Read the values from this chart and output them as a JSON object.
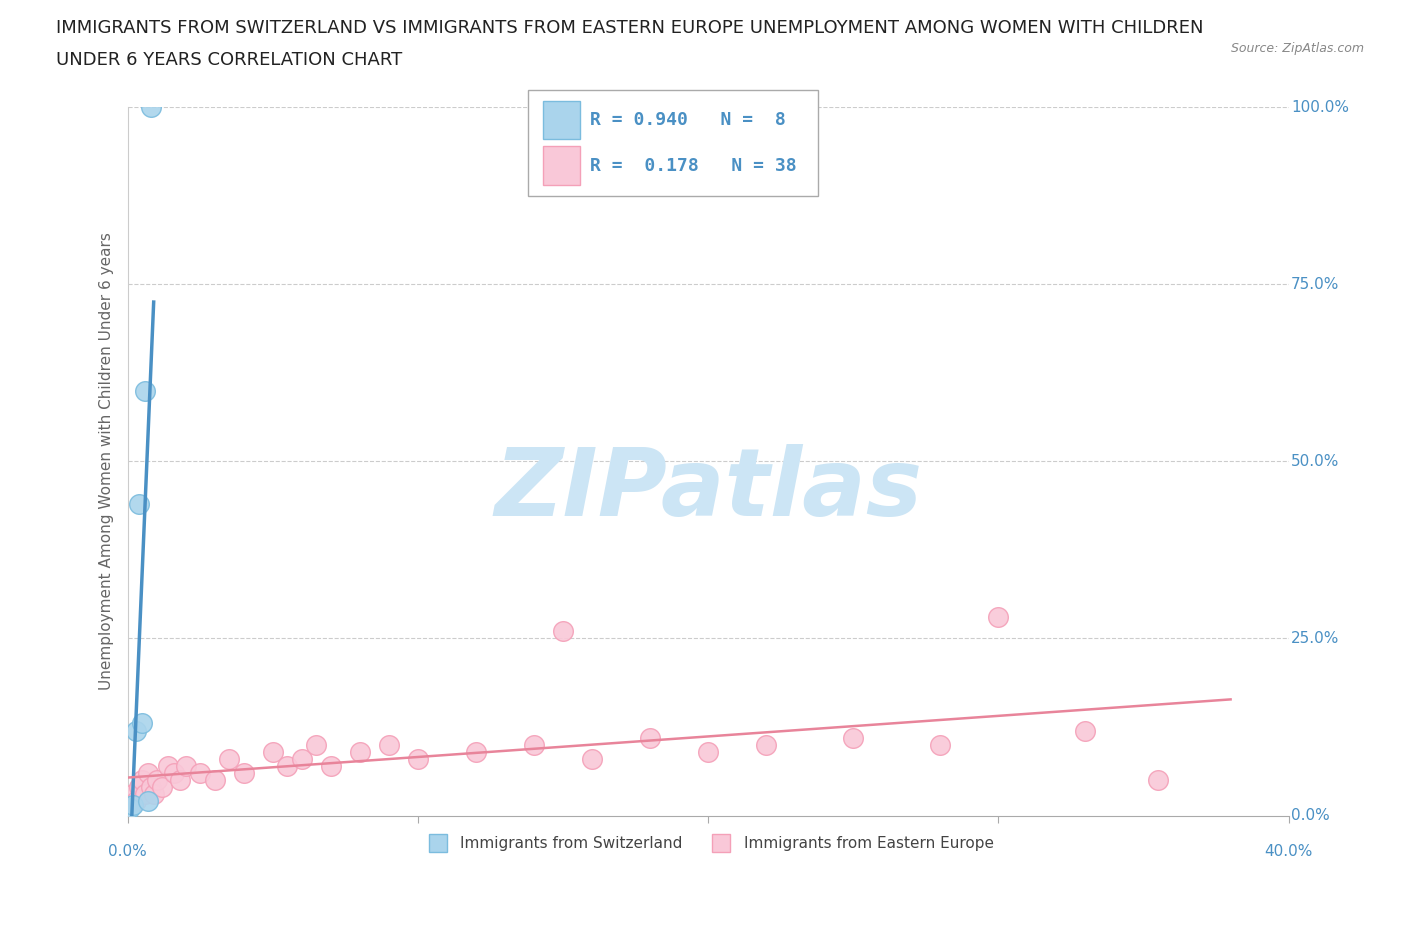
{
  "title_line1": "IMMIGRANTS FROM SWITZERLAND VS IMMIGRANTS FROM EASTERN EUROPE UNEMPLOYMENT AMONG WOMEN WITH CHILDREN",
  "title_line2": "UNDER 6 YEARS CORRELATION CHART",
  "source_text": "Source: ZipAtlas.com",
  "ylabel": "Unemployment Among Women with Children Under 6 years",
  "xlabel_swiss": "Immigrants from Switzerland",
  "xlabel_ee": "Immigrants from Eastern Europe",
  "xlim": [
    0,
    0.4
  ],
  "ylim": [
    0,
    1.0
  ],
  "yticks": [
    0.0,
    0.25,
    0.5,
    0.75,
    1.0
  ],
  "right_ytick_labels": [
    "0.0%",
    "25.0%",
    "50.0%",
    "75.0%",
    "100.0%"
  ],
  "xtick_left_label": "0.0%",
  "xtick_right_label": "40.0%",
  "xticks_minor": [
    0.0,
    0.1,
    0.2,
    0.3,
    0.4
  ],
  "swiss_color": "#7bbcde",
  "swiss_scatter_color": "#aad4ec",
  "ee_color": "#f4a0b8",
  "ee_scatter_color": "#f9c8d8",
  "trendline_swiss_color": "#4a90c4",
  "trendline_ee_color": "#e8849a",
  "swiss_R": 0.94,
  "swiss_N": 8,
  "ee_R": 0.178,
  "ee_N": 38,
  "swiss_x": [
    0.001,
    0.002,
    0.003,
    0.004,
    0.005,
    0.006,
    0.007,
    0.008
  ],
  "swiss_y": [
    0.01,
    0.015,
    0.12,
    0.44,
    0.13,
    0.6,
    0.02,
    1.0
  ],
  "ee_x": [
    0.002,
    0.003,
    0.004,
    0.005,
    0.006,
    0.007,
    0.008,
    0.009,
    0.01,
    0.012,
    0.014,
    0.016,
    0.018,
    0.02,
    0.025,
    0.03,
    0.035,
    0.04,
    0.05,
    0.055,
    0.06,
    0.065,
    0.07,
    0.08,
    0.09,
    0.1,
    0.12,
    0.14,
    0.15,
    0.16,
    0.18,
    0.2,
    0.22,
    0.25,
    0.28,
    0.3,
    0.33,
    0.355
  ],
  "ee_y": [
    0.03,
    0.02,
    0.04,
    0.05,
    0.03,
    0.06,
    0.04,
    0.03,
    0.05,
    0.04,
    0.07,
    0.06,
    0.05,
    0.07,
    0.06,
    0.05,
    0.08,
    0.06,
    0.09,
    0.07,
    0.08,
    0.1,
    0.07,
    0.09,
    0.1,
    0.08,
    0.09,
    0.1,
    0.26,
    0.08,
    0.11,
    0.09,
    0.1,
    0.11,
    0.1,
    0.28,
    0.12,
    0.05
  ],
  "watermark_text": "ZIPatlas",
  "watermark_color": "#cce5f5",
  "stat_text_color": "#4a90c4",
  "background_color": "#ffffff",
  "title_fontsize": 13,
  "axis_label_fontsize": 11,
  "tick_fontsize": 11,
  "legend_fontsize": 11
}
